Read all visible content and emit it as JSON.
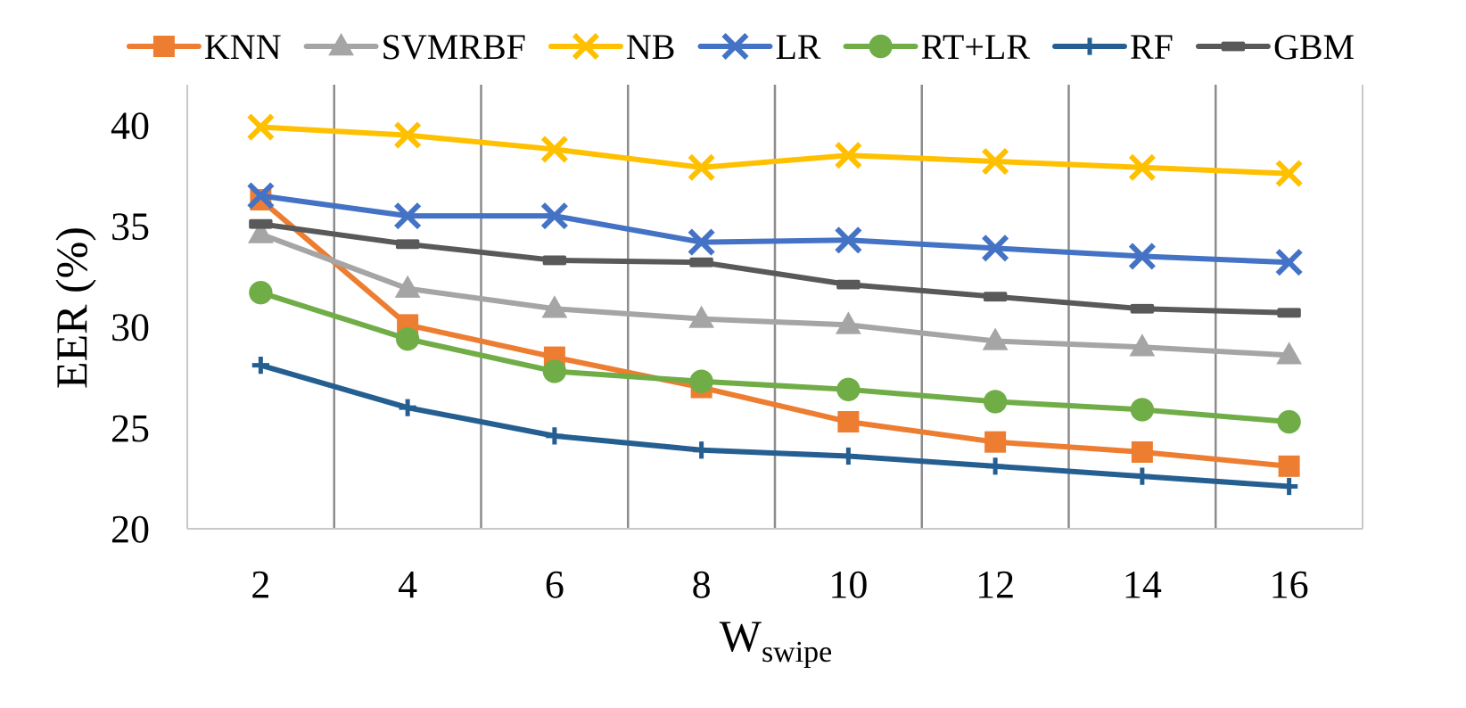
{
  "chart_data": {
    "type": "line",
    "title": "",
    "xlabel": "W",
    "xlabel_subscript": "swipe",
    "ylabel": "EER (%)",
    "ylim": [
      20,
      42
    ],
    "yticks": [
      20,
      25,
      30,
      35,
      40
    ],
    "x": [
      2,
      4,
      6,
      8,
      10,
      12,
      14,
      16
    ],
    "x_tick_labels": [
      "2",
      "4",
      "6",
      "8",
      "10",
      "12",
      "14",
      "16"
    ],
    "grid": "vertical",
    "legend_position": "top",
    "series": [
      {
        "name": "KNN",
        "color": "#ED7D31",
        "marker": "square",
        "values": [
          36.3,
          30.1,
          28.5,
          27.0,
          25.3,
          24.3,
          23.8,
          23.1
        ]
      },
      {
        "name": "SVMRBF",
        "color": "#A5A5A5",
        "marker": "triangle",
        "values": [
          34.6,
          31.9,
          30.9,
          30.4,
          30.1,
          29.3,
          29.0,
          28.6
        ]
      },
      {
        "name": "NB",
        "color": "#FFC000",
        "marker": "x",
        "values": [
          39.9,
          39.5,
          38.8,
          37.9,
          38.5,
          38.2,
          37.9,
          37.6
        ]
      },
      {
        "name": "LR",
        "color": "#4472C4",
        "marker": "x",
        "values": [
          36.5,
          35.5,
          35.5,
          34.2,
          34.3,
          33.9,
          33.5,
          33.2
        ]
      },
      {
        "name": "RT+LR",
        "color": "#70AD47",
        "marker": "circle",
        "values": [
          31.7,
          29.4,
          27.8,
          27.3,
          26.9,
          26.3,
          25.9,
          25.3
        ]
      },
      {
        "name": "RF",
        "color": "#255E91",
        "marker": "plus",
        "values": [
          28.1,
          26.0,
          24.6,
          23.9,
          23.6,
          23.1,
          22.6,
          22.1
        ]
      },
      {
        "name": "GBM",
        "color": "#595959",
        "marker": "dash",
        "values": [
          35.1,
          34.1,
          33.3,
          33.2,
          32.1,
          31.5,
          30.9,
          30.7
        ]
      }
    ]
  }
}
